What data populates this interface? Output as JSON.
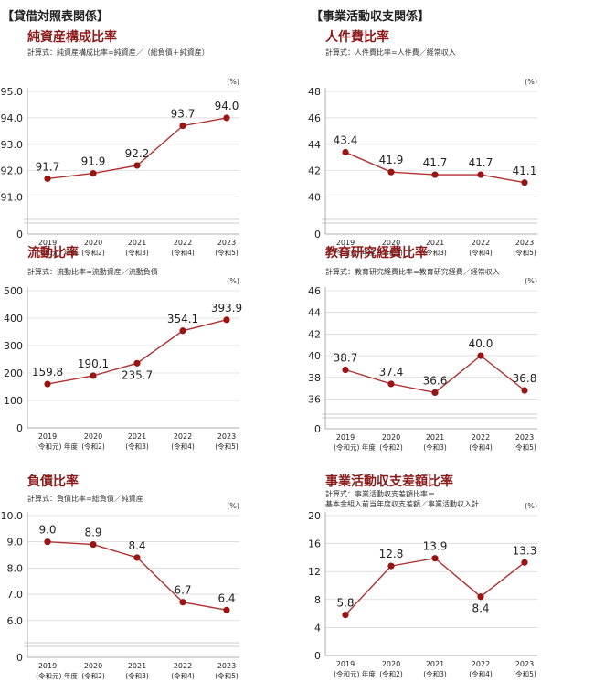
{
  "sections": {
    "left": "【貸借対照表関係】",
    "right": "【事業活動収支関係】"
  },
  "colors": {
    "line": "#b03030",
    "marker": "#9a1414",
    "title": "#8b1a1a",
    "grid": "#cccccc"
  },
  "unit": "(%)",
  "chart_data": [
    {
      "type": "line",
      "title": "純資産構成比率",
      "formula": [
        "計算式：純資産構成比率=純資産／（総負債＋純資産）"
      ],
      "x": [
        "2019",
        "2020",
        "2021",
        "2022",
        "2023"
      ],
      "xsub": [
        "(令和元) 年度",
        "(令和2)",
        "(令和3)",
        "(令和4)",
        "(令和5)"
      ],
      "values": [
        91.7,
        91.9,
        92.2,
        93.7,
        94.0
      ],
      "labels": [
        "91.7",
        "91.9",
        "92.2",
        "93.7",
        "94.0"
      ],
      "label_pos": [
        "above",
        "above",
        "above",
        "above",
        "above"
      ],
      "yticks": [
        91.0,
        92.0,
        93.0,
        94.0,
        95.0
      ],
      "ytick_labels": [
        "91.0",
        "92.0",
        "93.0",
        "94.0",
        "95.0"
      ],
      "ylim": [
        90.4,
        95.0
      ],
      "ybreak": true,
      "grid": true
    },
    {
      "type": "line",
      "title": "人件費比率",
      "formula": [
        "計算式：人件費比率=人件費／経常収入"
      ],
      "x": [
        "2019",
        "2020",
        "2021",
        "2022",
        "2023"
      ],
      "xsub": [
        "(令和元) 年度",
        "(令和2)",
        "(令和3)",
        "(令和4)",
        "(令和5)"
      ],
      "values": [
        43.4,
        41.9,
        41.7,
        41.7,
        41.1
      ],
      "labels": [
        "43.4",
        "41.9",
        "41.7",
        "41.7",
        "41.1"
      ],
      "label_pos": [
        "above",
        "above",
        "above",
        "above",
        "above"
      ],
      "yticks": [
        40,
        42,
        44,
        46,
        48
      ],
      "ytick_labels": [
        "40",
        "42",
        "44",
        "46",
        "48"
      ],
      "ylim": [
        38.8,
        48
      ],
      "ybreak": true,
      "grid": true
    },
    {
      "type": "line",
      "title": "流動比率",
      "formula": [
        "計算式：流動比率=流動資産／流動負債"
      ],
      "x": [
        "2019",
        "2020",
        "2021",
        "2022",
        "2023"
      ],
      "xsub": [
        "(令和元) 年度",
        "(令和2)",
        "(令和3)",
        "(令和4)",
        "(令和5)"
      ],
      "values": [
        159.8,
        190.1,
        235.7,
        354.1,
        393.9
      ],
      "labels": [
        "159.8",
        "190.1",
        "235.7",
        "354.1",
        "393.9"
      ],
      "label_pos": [
        "above",
        "above",
        "below",
        "above",
        "above"
      ],
      "yticks": [
        0,
        100,
        200,
        300,
        400,
        500
      ],
      "ytick_labels": [
        "0",
        "100",
        "200",
        "300",
        "400",
        "500"
      ],
      "ylim": [
        0,
        500
      ],
      "ybreak": false,
      "grid": true
    },
    {
      "type": "line",
      "title": "教育研究経費比率",
      "formula": [
        "計算式：教育研究経費比率=教育研究経費／経常収入"
      ],
      "x": [
        "2019",
        "2020",
        "2021",
        "2022",
        "2023"
      ],
      "xsub": [
        "(令和元) 年度",
        "(令和2)",
        "(令和3)",
        "(令和4)",
        "(令和5)"
      ],
      "values": [
        38.7,
        37.4,
        36.6,
        40.0,
        36.8
      ],
      "labels": [
        "38.7",
        "37.4",
        "36.6",
        "40.0",
        "36.8"
      ],
      "label_pos": [
        "above",
        "above",
        "above",
        "above",
        "above"
      ],
      "yticks": [
        36,
        38,
        40,
        42,
        44,
        46
      ],
      "ytick_labels": [
        "36",
        "38",
        "40",
        "42",
        "44",
        "46"
      ],
      "ylim": [
        35.2,
        46
      ],
      "ybreak": true,
      "grid": true
    },
    {
      "type": "line",
      "title": "負債比率",
      "formula": [
        "計算式：負債比率=総負債／純資産"
      ],
      "x": [
        "2019",
        "2020",
        "2021",
        "2022",
        "2023"
      ],
      "xsub": [
        "(令和元) 年度",
        "(令和2)",
        "(令和3)",
        "(令和4)",
        "(令和5)"
      ],
      "values": [
        9.0,
        8.9,
        8.4,
        6.7,
        6.4
      ],
      "labels": [
        "9.0",
        "8.9",
        "8.4",
        "6.7",
        "6.4"
      ],
      "label_pos": [
        "above",
        "above",
        "above",
        "above",
        "above"
      ],
      "yticks": [
        6.0,
        7.0,
        8.0,
        9.0,
        10.0
      ],
      "ytick_labels": [
        "6.0",
        "7.0",
        "8.0",
        "9.0",
        "10.0"
      ],
      "ylim": [
        5.4,
        10.0
      ],
      "ybreak": true,
      "grid": true
    },
    {
      "type": "line",
      "title": "事業活動収支差額比率",
      "formula": [
        "計算式：事業活動収支差額比率＝",
        "基本金組入前当年度収支差額／事業活動収入計"
      ],
      "x": [
        "2019",
        "2020",
        "2021",
        "2022",
        "2023"
      ],
      "xsub": [
        "(令和元) 年度",
        "(令和2)",
        "(令和3)",
        "(令和4)",
        "(令和5)"
      ],
      "values": [
        5.8,
        12.8,
        13.9,
        8.4,
        13.3
      ],
      "labels": [
        "5.8",
        "12.8",
        "13.9",
        "8.4",
        "13.3"
      ],
      "label_pos": [
        "above",
        "above",
        "above",
        "below",
        "above"
      ],
      "yticks": [
        0,
        4,
        8,
        12,
        16,
        20
      ],
      "ytick_labels": [
        "0",
        "4",
        "8",
        "12",
        "16",
        "20"
      ],
      "ylim": [
        0,
        20
      ],
      "ybreak": false,
      "grid": true
    }
  ]
}
